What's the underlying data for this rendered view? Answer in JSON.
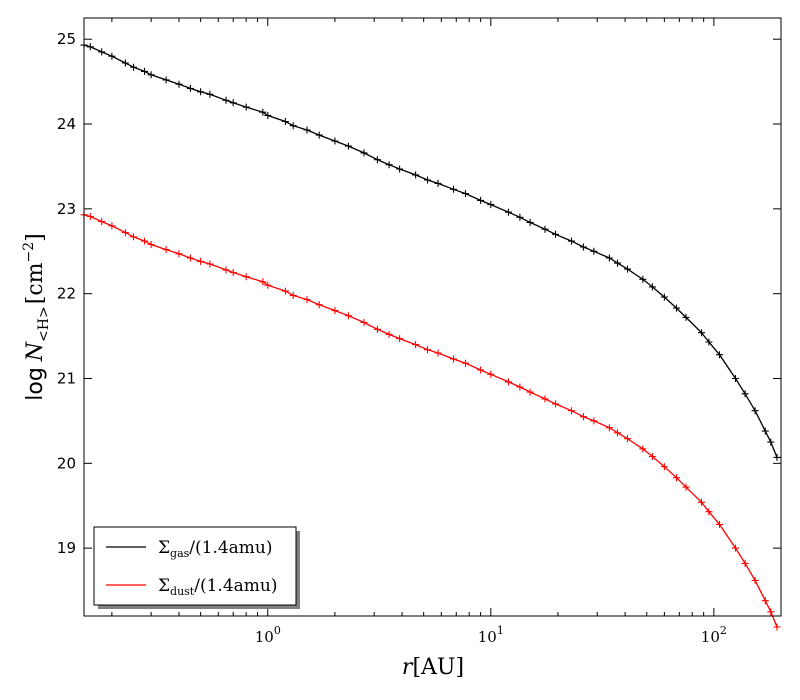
{
  "chart_data": {
    "type": "line",
    "xlabel_math": "r",
    "xlabel_unit": "[AU]",
    "ylabel_prefix": "log",
    "ylabel_math": "N",
    "ylabel_sub": "<H>",
    "ylabel_unit": "[cm",
    "ylabel_exp": "−2",
    "ylabel_close": "]",
    "x_scale": "log",
    "xlim": [
      0.15,
      200
    ],
    "ylim": [
      18.2,
      25.25
    ],
    "x_ticks": [
      {
        "value": 1,
        "base": "10",
        "exp": "0"
      },
      {
        "value": 10,
        "base": "10",
        "exp": "1"
      },
      {
        "value": 100,
        "base": "10",
        "exp": "2"
      }
    ],
    "y_ticks": [
      19,
      20,
      21,
      22,
      23,
      24,
      25
    ],
    "y_tick_labels": [
      "19",
      "20",
      "21",
      "22",
      "23",
      "24",
      "25"
    ],
    "grid": false,
    "legend_position": "lower-left",
    "series": [
      {
        "name": "Σgas/(1.4amu)",
        "legend_symbol": "Σ",
        "legend_sub": "gas",
        "legend_rest": "/(1.4amu)",
        "color": "#000000",
        "marker": "+",
        "x": [
          0.15,
          0.16,
          0.18,
          0.2,
          0.23,
          0.25,
          0.28,
          0.3,
          0.35,
          0.4,
          0.45,
          0.5,
          0.55,
          0.65,
          0.7,
          0.8,
          0.95,
          1.0,
          1.2,
          1.3,
          1.5,
          1.7,
          2.0,
          2.3,
          2.7,
          3.1,
          3.5,
          3.9,
          4.6,
          5.2,
          5.8,
          6.8,
          7.7,
          9.0,
          10.0,
          12.0,
          13.5,
          15.0,
          17.5,
          19.5,
          23.0,
          26.0,
          29.0,
          34.0,
          37.0,
          41.0,
          48.0,
          53.0,
          60.0,
          68.0,
          75.0,
          88.0,
          95.0,
          106.0,
          125.0,
          138.0,
          153.0,
          170.0,
          180.0,
          192.0
        ],
        "y": [
          24.93,
          24.91,
          24.85,
          24.8,
          24.72,
          24.67,
          24.62,
          24.58,
          24.52,
          24.47,
          24.42,
          24.38,
          24.35,
          24.28,
          24.25,
          24.2,
          24.14,
          24.1,
          24.03,
          23.98,
          23.93,
          23.87,
          23.8,
          23.74,
          23.66,
          23.58,
          23.52,
          23.47,
          23.4,
          23.34,
          23.3,
          23.23,
          23.18,
          23.1,
          23.05,
          22.96,
          22.9,
          22.84,
          22.76,
          22.7,
          22.62,
          22.55,
          22.5,
          22.42,
          22.36,
          22.29,
          22.17,
          22.08,
          21.96,
          21.83,
          21.72,
          21.54,
          21.43,
          21.28,
          21.0,
          20.82,
          20.62,
          20.38,
          20.25,
          20.07
        ]
      },
      {
        "name": "Σdust/(1.4amu)",
        "legend_symbol": "Σ",
        "legend_sub": "dust",
        "legend_rest": "/(1.4amu)",
        "color": "#ff0000",
        "marker": "+",
        "x": [
          0.15,
          0.16,
          0.18,
          0.2,
          0.23,
          0.25,
          0.28,
          0.3,
          0.35,
          0.4,
          0.45,
          0.5,
          0.55,
          0.65,
          0.7,
          0.8,
          0.95,
          1.0,
          1.2,
          1.3,
          1.5,
          1.7,
          2.0,
          2.3,
          2.7,
          3.1,
          3.5,
          3.9,
          4.6,
          5.2,
          5.8,
          6.8,
          7.7,
          9.0,
          10.0,
          12.0,
          13.5,
          15.0,
          17.5,
          19.5,
          23.0,
          26.0,
          29.0,
          34.0,
          37.0,
          41.0,
          48.0,
          53.0,
          60.0,
          68.0,
          75.0,
          88.0,
          95.0,
          106.0,
          125.0,
          138.0,
          153.0,
          170.0,
          180.0,
          192.0
        ],
        "y": [
          22.93,
          22.91,
          22.85,
          22.8,
          22.72,
          22.67,
          22.62,
          22.58,
          22.52,
          22.47,
          22.42,
          22.38,
          22.35,
          22.28,
          22.25,
          22.2,
          22.14,
          22.1,
          22.03,
          21.98,
          21.93,
          21.87,
          21.8,
          21.74,
          21.66,
          21.58,
          21.52,
          21.47,
          21.4,
          21.34,
          21.3,
          21.23,
          21.18,
          21.1,
          21.05,
          20.96,
          20.9,
          20.84,
          20.76,
          20.7,
          20.62,
          20.55,
          20.5,
          20.42,
          20.36,
          20.29,
          20.17,
          20.08,
          19.96,
          19.83,
          19.72,
          19.54,
          19.43,
          19.28,
          19.0,
          18.82,
          18.62,
          18.38,
          18.25,
          18.07
        ]
      }
    ]
  }
}
